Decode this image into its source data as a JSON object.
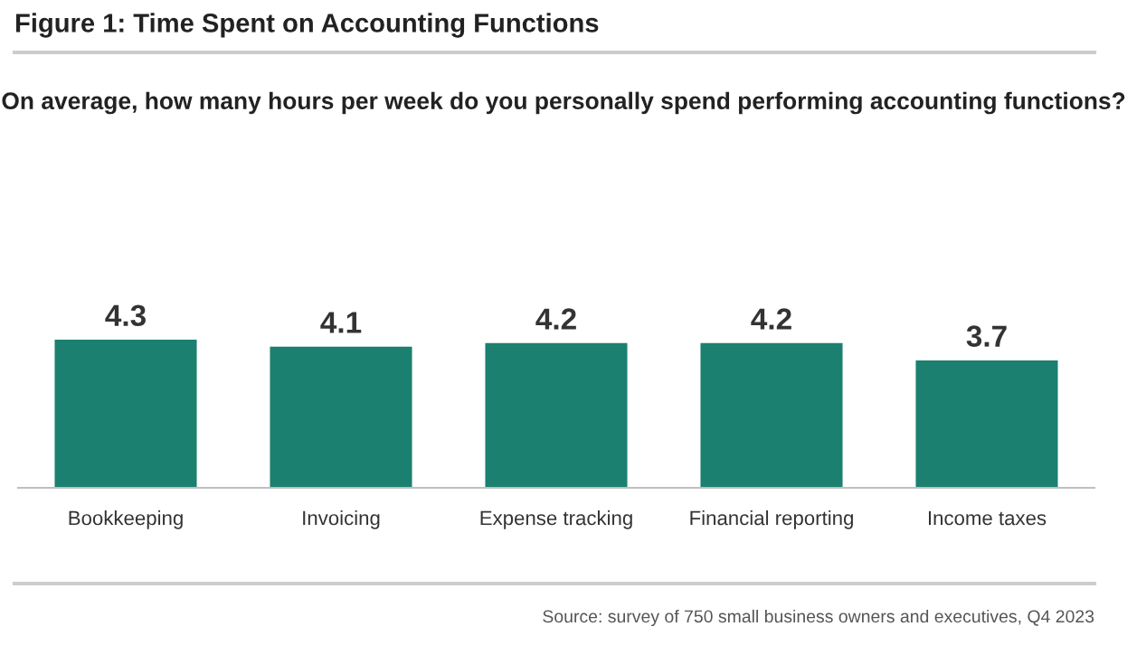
{
  "chart_data": {
    "type": "bar",
    "title": "Figure 1: Time Spent on Accounting Functions",
    "subtitle": "On average, how many hours per week do you personally spend performing accounting functions?",
    "categories": [
      "Bookkeeping",
      "Invoicing",
      "Expense tracking",
      "Financial reporting",
      "Income taxes"
    ],
    "values": [
      4.3,
      4.1,
      4.2,
      4.2,
      3.7
    ],
    "color": "#1b8070",
    "data_labels": true,
    "grid": false,
    "legend": false,
    "tick_labels": "x",
    "annotations": [
      "Source: survey of 750 small business owners and executives, Q4 2023"
    ]
  }
}
